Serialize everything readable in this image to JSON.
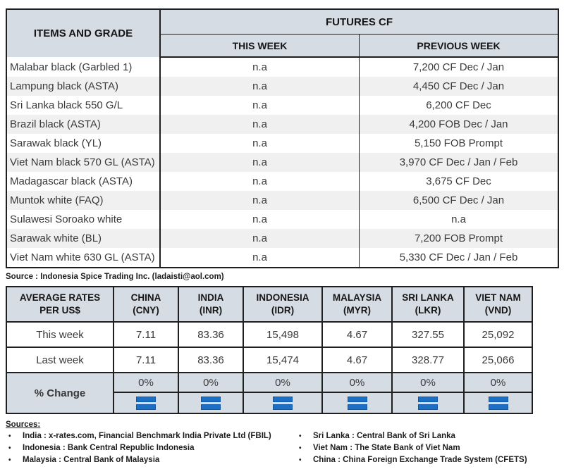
{
  "futures_table": {
    "corner_header": "ITEMS AND GRADE",
    "group_header": "FUTURES CF",
    "col_this_week": "THIS WEEK",
    "col_previous_week": "PREVIOUS WEEK",
    "rows": [
      {
        "item": "Malabar black (Garbled 1)",
        "this_week": "n.a",
        "previous_week": "7,200 CF Dec / Jan"
      },
      {
        "item": "Lampung black (ASTA)",
        "this_week": "n.a",
        "previous_week": "4,450 CF Dec / Jan"
      },
      {
        "item": "Sri Lanka black 550 G/L",
        "this_week": "n.a",
        "previous_week": "6,200 CF Dec"
      },
      {
        "item": "Brazil black (ASTA)",
        "this_week": "n.a",
        "previous_week": "4,200 FOB Dec / Jan"
      },
      {
        "item": "Sarawak black (YL)",
        "this_week": "n.a",
        "previous_week": "5,150 FOB Prompt"
      },
      {
        "item": "Viet Nam black 570 GL (ASTA)",
        "this_week": "n.a",
        "previous_week": "3,970 CF Dec / Jan / Feb"
      },
      {
        "item": "Madagascar black (ASTA)",
        "this_week": "n.a",
        "previous_week": "3,675 CF Dec"
      },
      {
        "item": "Muntok white (FAQ)",
        "this_week": "n.a",
        "previous_week": "6,500 CF Dec / Jan"
      },
      {
        "item": "Sulawesi Soroako white",
        "this_week": "n.a",
        "previous_week": "n.a"
      },
      {
        "item": "Sarawak  white (BL)",
        "this_week": "n.a",
        "previous_week": "7,200 FOB Prompt"
      },
      {
        "item": "Viet Nam white 630 GL (ASTA)",
        "this_week": "n.a",
        "previous_week": "5,330 CF Dec / Jan / Feb"
      }
    ]
  },
  "source_line": "Source : Indonesia Spice Trading Inc. (ladaisti@aol.com)",
  "rates_table": {
    "corner_line1": "AVERAGE RATES",
    "corner_line2": "PER US$",
    "columns": [
      {
        "country": "CHINA",
        "code": "(CNY)"
      },
      {
        "country": "INDIA",
        "code": "(INR)"
      },
      {
        "country": "INDONESIA",
        "code": "(IDR)"
      },
      {
        "country": "MALAYSIA",
        "code": "(MYR)"
      },
      {
        "country": "SRI LANKA",
        "code": "(LKR)"
      },
      {
        "country": "VIET NAM",
        "code": "(VND)"
      }
    ],
    "row_labels": {
      "this_week": "This week",
      "last_week": "Last week",
      "pct_change": "% Change"
    },
    "this_week": [
      "7.11",
      "83.36",
      "15,498",
      "4.67",
      "327.55",
      "25,092"
    ],
    "last_week": [
      "7.11",
      "83.36",
      "15,474",
      "4.67",
      "328.77",
      "25,066"
    ],
    "pct_change": [
      "0%",
      "0%",
      "0%",
      "0%",
      "0%",
      "0%"
    ],
    "change_icon": "equal-icon"
  },
  "sources": {
    "heading": "Sources:",
    "bullet": "•",
    "left": [
      "India : x-rates.com, Financial Benchmark India Private Ltd (FBIL)",
      "Indonesia : Bank Central Republic Indonesia",
      "Malaysia : Central Bank of Malaysia"
    ],
    "right": [
      "Sri Lanka : Central Bank of Sri Lanka",
      "Viet Nam : The State Bank of Viet Nam",
      "China : China Foreign Exchange Trade System (CFETS)"
    ]
  },
  "colors": {
    "header_bg": "#D6DCE4",
    "stripe_bg": "#F0F0F0",
    "border": "#1F1F1F",
    "icon_blue": "#1B70C6"
  }
}
